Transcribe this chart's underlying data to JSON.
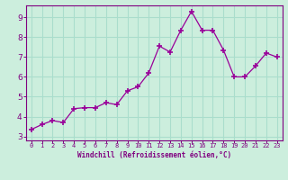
{
  "x": [
    0,
    1,
    2,
    3,
    4,
    5,
    6,
    7,
    8,
    9,
    10,
    11,
    12,
    13,
    14,
    15,
    16,
    17,
    18,
    19,
    20,
    21,
    22,
    23
  ],
  "y": [
    3.35,
    3.6,
    3.8,
    3.7,
    4.4,
    4.45,
    4.45,
    4.7,
    4.6,
    5.3,
    5.5,
    6.2,
    7.55,
    7.25,
    8.35,
    9.3,
    8.35,
    8.35,
    7.35,
    6.0,
    6.0,
    6.55,
    7.2,
    7.0
  ],
  "line_color": "#990099",
  "marker": "+",
  "marker_size": 4,
  "marker_linewidth": 1.2,
  "bg_color": "#cceedd",
  "grid_color": "#aaddcc",
  "xlabel": "Windchill (Refroidissement éolien,°C)",
  "xlabel_color": "#800080",
  "tick_color": "#800080",
  "xlim": [
    -0.5,
    23.5
  ],
  "ylim": [
    2.8,
    9.6
  ],
  "yticks": [
    3,
    4,
    5,
    6,
    7,
    8,
    9
  ],
  "xticks": [
    0,
    1,
    2,
    3,
    4,
    5,
    6,
    7,
    8,
    9,
    10,
    11,
    12,
    13,
    14,
    15,
    16,
    17,
    18,
    19,
    20,
    21,
    22,
    23
  ],
  "spine_color": "#800080",
  "grid_linewidth": 0.8,
  "line_linewidth": 0.9
}
